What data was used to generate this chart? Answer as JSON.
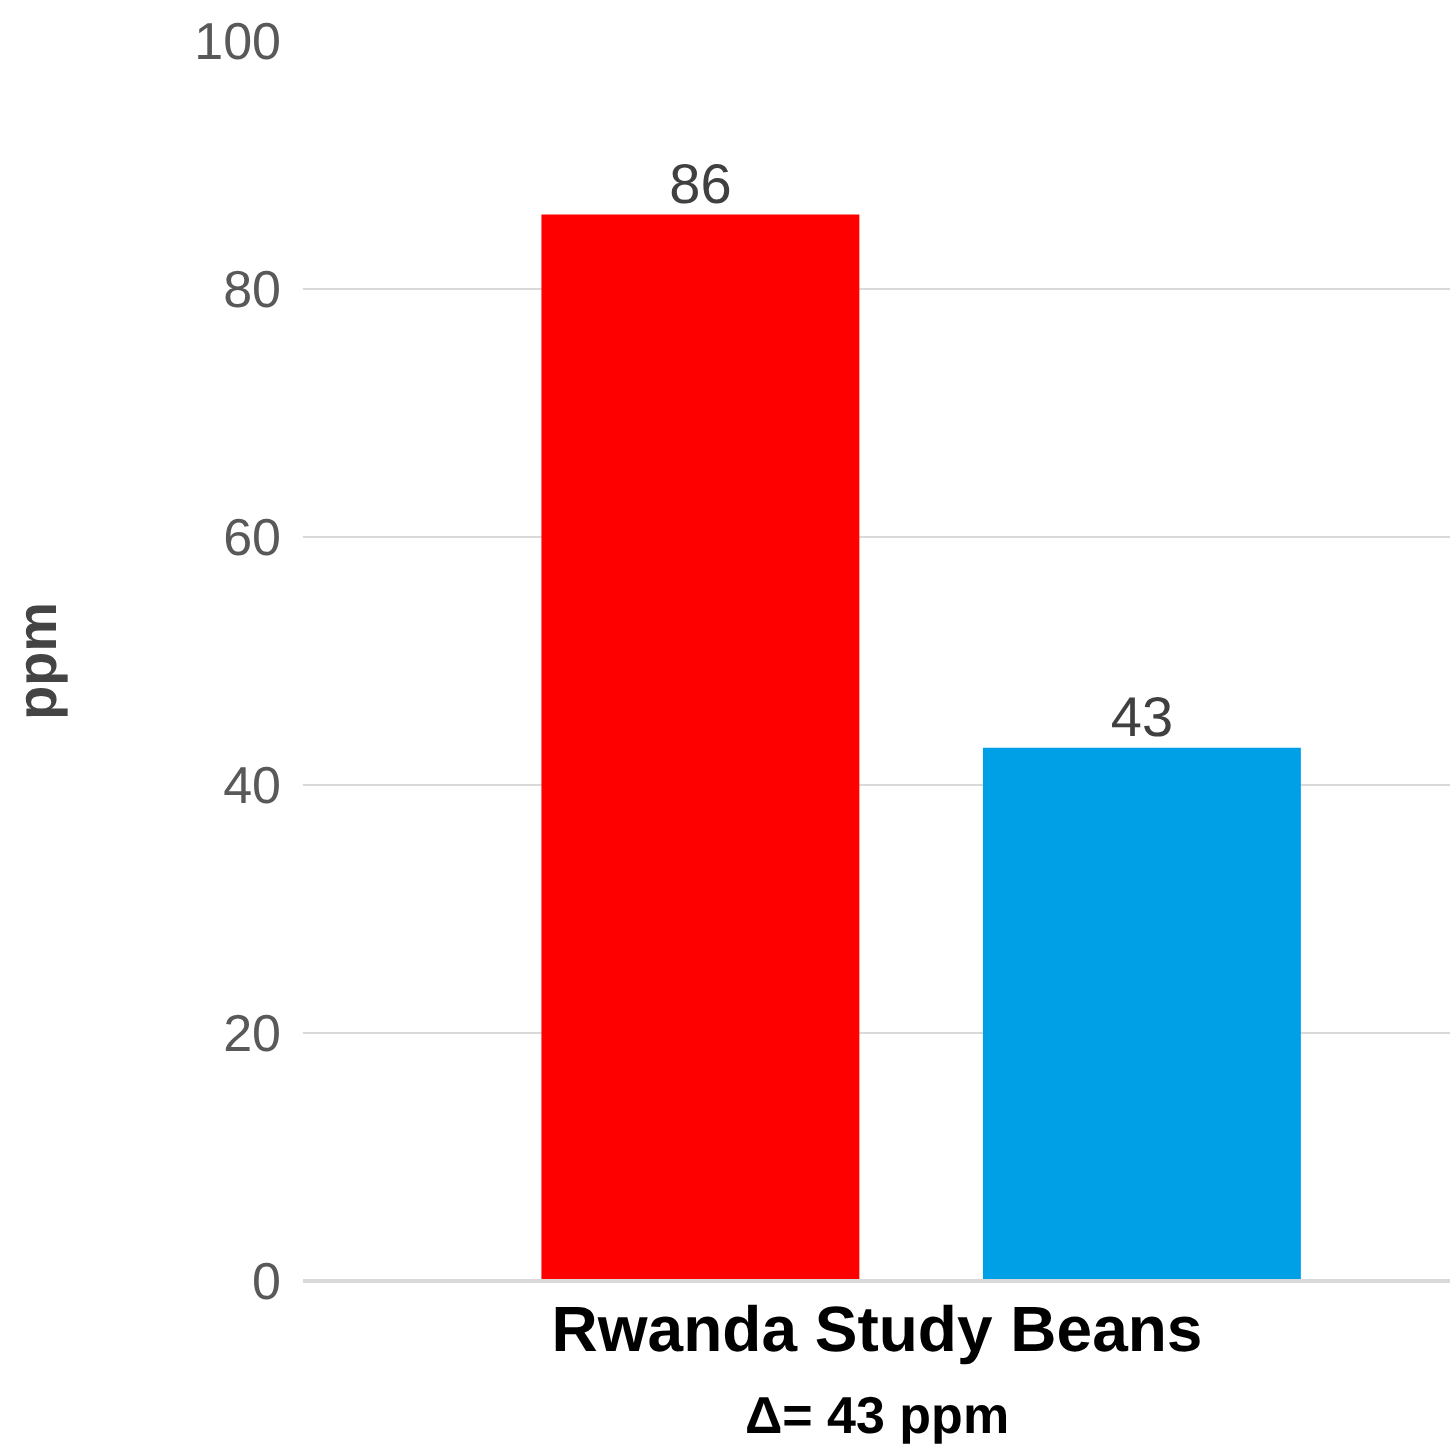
{
  "chart_data": {
    "type": "bar",
    "categories": [
      null,
      null
    ],
    "values": [
      86,
      43
    ],
    "colors": [
      "#ff0000",
      "#00a0e6"
    ],
    "xlabel": "Rwanda Study Beans",
    "ylabel": "ppm",
    "annotations": [
      "Δ= 43 ppm"
    ],
    "ylim": [
      0,
      100
    ],
    "yticks": [
      0,
      20,
      40,
      60,
      80,
      100
    ],
    "grid": "y",
    "data_labels": true
  }
}
